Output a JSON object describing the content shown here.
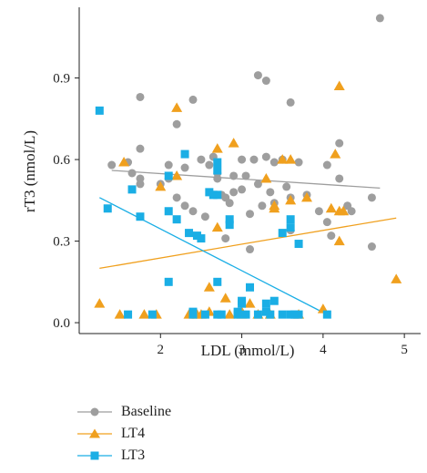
{
  "chart_data": {
    "type": "scatter",
    "xlabel": "LDL (mmol/L)",
    "ylabel": "rT3 (nmol/L)",
    "xlim": [
      1.0,
      5.2
    ],
    "ylim": [
      -0.04,
      1.16
    ],
    "xticks": [
      2,
      3,
      4,
      5
    ],
    "yticks": [
      0.0,
      0.3,
      0.6,
      0.9
    ],
    "xtick_labels": [
      "2",
      "3",
      "4",
      "5"
    ],
    "ytick_labels": [
      "0.0",
      "0.3",
      "0.6",
      "0.9"
    ],
    "grid": false,
    "legend_position": "bottom-left",
    "series": [
      {
        "name": "Baseline",
        "color": "#9e9e9e",
        "marker": "circle",
        "fit": {
          "x": [
            1.4,
            4.7
          ],
          "y": [
            0.56,
            0.495
          ]
        },
        "points": [
          [
            1.4,
            0.58
          ],
          [
            1.6,
            0.59
          ],
          [
            1.65,
            0.55
          ],
          [
            1.75,
            0.83
          ],
          [
            1.75,
            0.64
          ],
          [
            1.75,
            0.53
          ],
          [
            1.75,
            0.51
          ],
          [
            2.0,
            0.51
          ],
          [
            2.1,
            0.58
          ],
          [
            2.1,
            0.53
          ],
          [
            2.2,
            0.73
          ],
          [
            2.2,
            0.46
          ],
          [
            2.3,
            0.57
          ],
          [
            2.3,
            0.43
          ],
          [
            2.4,
            0.82
          ],
          [
            2.4,
            0.41
          ],
          [
            2.5,
            0.6
          ],
          [
            2.55,
            0.39
          ],
          [
            2.6,
            0.58
          ],
          [
            2.65,
            0.61
          ],
          [
            2.7,
            0.53
          ],
          [
            2.7,
            0.55
          ],
          [
            2.75,
            0.47
          ],
          [
            2.8,
            0.46
          ],
          [
            2.8,
            0.31
          ],
          [
            2.85,
            0.44
          ],
          [
            2.9,
            0.54
          ],
          [
            2.9,
            0.48
          ],
          [
            3.0,
            0.6
          ],
          [
            3.0,
            0.49
          ],
          [
            3.05,
            0.54
          ],
          [
            3.1,
            0.4
          ],
          [
            3.1,
            0.27
          ],
          [
            3.15,
            0.6
          ],
          [
            3.2,
            0.91
          ],
          [
            3.2,
            0.51
          ],
          [
            3.25,
            0.43
          ],
          [
            3.3,
            0.89
          ],
          [
            3.3,
            0.61
          ],
          [
            3.35,
            0.48
          ],
          [
            3.4,
            0.59
          ],
          [
            3.4,
            0.44
          ],
          [
            3.5,
            0.6
          ],
          [
            3.55,
            0.5
          ],
          [
            3.6,
            0.81
          ],
          [
            3.6,
            0.46
          ],
          [
            3.6,
            0.34
          ],
          [
            3.7,
            0.59
          ],
          [
            3.8,
            0.47
          ],
          [
            3.95,
            0.41
          ],
          [
            4.05,
            0.58
          ],
          [
            4.05,
            0.37
          ],
          [
            4.1,
            0.32
          ],
          [
            4.2,
            0.66
          ],
          [
            4.2,
            0.53
          ],
          [
            4.3,
            0.43
          ],
          [
            4.35,
            0.41
          ],
          [
            4.6,
            0.28
          ],
          [
            4.6,
            0.46
          ],
          [
            4.7,
            1.12
          ]
        ]
      },
      {
        "name": "LT4",
        "color": "#f0a01e",
        "marker": "triangle",
        "fit": {
          "x": [
            1.25,
            4.9
          ],
          "y": [
            0.2,
            0.385
          ]
        },
        "points": [
          [
            1.25,
            0.07
          ],
          [
            1.5,
            0.03
          ],
          [
            1.55,
            0.59
          ],
          [
            1.8,
            0.03
          ],
          [
            1.95,
            0.03
          ],
          [
            2.0,
            0.5
          ],
          [
            2.2,
            0.79
          ],
          [
            2.2,
            0.54
          ],
          [
            2.35,
            0.03
          ],
          [
            2.45,
            0.03
          ],
          [
            2.5,
            0.03
          ],
          [
            2.6,
            0.04
          ],
          [
            2.6,
            0.13
          ],
          [
            2.7,
            0.64
          ],
          [
            2.7,
            0.35
          ],
          [
            2.8,
            0.09
          ],
          [
            2.85,
            0.03
          ],
          [
            2.9,
            0.66
          ],
          [
            3.0,
            0.03
          ],
          [
            3.0,
            0.04
          ],
          [
            3.1,
            0.07
          ],
          [
            3.2,
            0.03
          ],
          [
            3.3,
            0.53
          ],
          [
            3.35,
            0.03
          ],
          [
            3.4,
            0.43
          ],
          [
            3.4,
            0.42
          ],
          [
            3.5,
            0.6
          ],
          [
            3.6,
            0.6
          ],
          [
            3.6,
            0.45
          ],
          [
            3.7,
            0.03
          ],
          [
            3.8,
            0.46
          ],
          [
            4.0,
            0.05
          ],
          [
            4.1,
            0.42
          ],
          [
            4.15,
            0.62
          ],
          [
            4.2,
            0.87
          ],
          [
            4.2,
            0.41
          ],
          [
            4.2,
            0.3
          ],
          [
            4.25,
            0.41
          ],
          [
            4.9,
            0.16
          ]
        ]
      },
      {
        "name": "LT3",
        "color": "#1aaee5",
        "marker": "square",
        "fit": {
          "x": [
            1.25,
            4.05
          ],
          "y": [
            0.46,
            0.03
          ]
        },
        "points": [
          [
            1.25,
            0.78
          ],
          [
            1.35,
            0.42
          ],
          [
            1.6,
            0.03
          ],
          [
            1.65,
            0.49
          ],
          [
            1.75,
            0.39
          ],
          [
            1.9,
            0.03
          ],
          [
            2.1,
            0.41
          ],
          [
            2.1,
            0.54
          ],
          [
            2.1,
            0.15
          ],
          [
            2.2,
            0.38
          ],
          [
            2.3,
            0.62
          ],
          [
            2.35,
            0.33
          ],
          [
            2.4,
            0.03
          ],
          [
            2.4,
            0.04
          ],
          [
            2.45,
            0.32
          ],
          [
            2.5,
            0.31
          ],
          [
            2.55,
            0.03
          ],
          [
            2.6,
            0.48
          ],
          [
            2.65,
            0.47
          ],
          [
            2.7,
            0.59
          ],
          [
            2.7,
            0.56
          ],
          [
            2.7,
            0.47
          ],
          [
            2.7,
            0.15
          ],
          [
            2.7,
            0.03
          ],
          [
            2.75,
            0.03
          ],
          [
            2.85,
            0.36
          ],
          [
            2.85,
            0.38
          ],
          [
            2.95,
            0.03
          ],
          [
            2.95,
            0.04
          ],
          [
            3.0,
            0.08
          ],
          [
            3.0,
            0.07
          ],
          [
            3.05,
            0.03
          ],
          [
            3.1,
            0.13
          ],
          [
            3.2,
            0.03
          ],
          [
            3.3,
            0.07
          ],
          [
            3.3,
            0.04
          ],
          [
            3.35,
            0.03
          ],
          [
            3.4,
            0.08
          ],
          [
            3.5,
            0.03
          ],
          [
            3.5,
            0.33
          ],
          [
            3.6,
            0.38
          ],
          [
            3.6,
            0.35
          ],
          [
            3.6,
            0.03
          ],
          [
            3.65,
            0.03
          ],
          [
            3.7,
            0.29
          ],
          [
            3.7,
            0.03
          ],
          [
            4.05,
            0.03
          ]
        ]
      }
    ]
  }
}
